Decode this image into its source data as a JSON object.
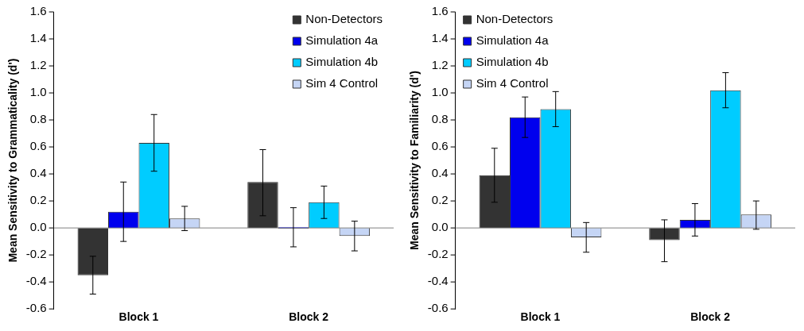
{
  "chart_data": [
    {
      "type": "bar",
      "ylabel": "Mean Sensitivity to Grammaticality (d')",
      "categories": [
        "Block 1",
        "Block 2"
      ],
      "ylim": [
        -0.6,
        1.6
      ],
      "yticks": [
        {
          "value": -0.6,
          "label": "-0.6"
        },
        {
          "value": -0.4,
          "label": "-0.4"
        },
        {
          "value": -0.2,
          "label": "-0.2"
        },
        {
          "value": 0,
          "label": "0.0"
        },
        {
          "value": 0.2,
          "label": "0.2"
        },
        {
          "value": 0.4,
          "label": "0.4"
        },
        {
          "value": 0.6,
          "label": "0.6"
        },
        {
          "value": 0.8,
          "label": "0.8"
        },
        {
          "value": 1,
          "label": "1.0"
        },
        {
          "value": 1.2,
          "label": "1.2"
        },
        {
          "value": 1.4,
          "label": "1.4"
        },
        {
          "value": 1.6,
          "label": "1.6"
        }
      ],
      "grid": false,
      "legend": "top right",
      "ref_lines": [
        {
          "axis": "y",
          "value": 0,
          "color": "#808080"
        }
      ],
      "series": [
        {
          "name": "Non-Detectors",
          "color": "#333333",
          "values": [
            -0.35,
            0.34
          ],
          "errors": [
            [
              -0.49,
              -0.21
            ],
            [
              0.09,
              0.58
            ]
          ]
        },
        {
          "name": "Simulation 4a",
          "color": "#0000ee",
          "values": [
            0.12,
            0
          ],
          "errors": [
            [
              -0.1,
              0.34
            ],
            [
              -0.14,
              0.15
            ]
          ]
        },
        {
          "name": "Simulation 4b",
          "color": "#00ccff",
          "values": [
            0.63,
            0.19
          ],
          "errors": [
            [
              0.42,
              0.84
            ],
            [
              0.07,
              0.31
            ]
          ]
        },
        {
          "name": "Sim 4 Control",
          "color": "#c5d5f5",
          "values": [
            0.07,
            -0.06
          ],
          "errors": [
            [
              -0.02,
              0.16
            ],
            [
              -0.17,
              0.05
            ]
          ]
        }
      ]
    },
    {
      "type": "bar",
      "ylabel": "Mean Sensitivity to Familiarity (d')",
      "categories": [
        "Block 1",
        "Block 2"
      ],
      "ylim": [
        -0.6,
        1.6
      ],
      "yticks": [
        {
          "value": -0.6,
          "label": "-0.6"
        },
        {
          "value": -0.4,
          "label": "-0.4"
        },
        {
          "value": -0.2,
          "label": "-0.2"
        },
        {
          "value": 0,
          "label": "0.0"
        },
        {
          "value": 0.2,
          "label": "0.2"
        },
        {
          "value": 0.4,
          "label": "0.4"
        },
        {
          "value": 0.6,
          "label": "0.6"
        },
        {
          "value": 0.8,
          "label": "0.8"
        },
        {
          "value": 1,
          "label": "1.0"
        },
        {
          "value": 1.2,
          "label": "1.2"
        },
        {
          "value": 1.4,
          "label": "1.4"
        },
        {
          "value": 1.6,
          "label": "1.6"
        }
      ],
      "grid": false,
      "legend": "top left",
      "ref_lines": [
        {
          "axis": "y",
          "value": 0,
          "color": "#808080"
        }
      ],
      "series": [
        {
          "name": "Non-Detectors",
          "color": "#333333",
          "values": [
            0.39,
            -0.09
          ],
          "errors": [
            [
              0.19,
              0.59
            ],
            [
              -0.25,
              0.06
            ]
          ]
        },
        {
          "name": "Simulation 4a",
          "color": "#0000ee",
          "values": [
            0.82,
            0.06
          ],
          "errors": [
            [
              0.67,
              0.97
            ],
            [
              -0.06,
              0.18
            ]
          ]
        },
        {
          "name": "Simulation 4b",
          "color": "#00ccff",
          "values": [
            0.88,
            1.02
          ],
          "errors": [
            [
              0.75,
              1.01
            ],
            [
              0.89,
              1.15
            ]
          ]
        },
        {
          "name": "Sim 4 Control",
          "color": "#c5d5f5",
          "values": [
            -0.07,
            0.1
          ],
          "errors": [
            [
              -0.18,
              0.04
            ],
            [
              -0.01,
              0.2
            ]
          ]
        }
      ]
    }
  ]
}
